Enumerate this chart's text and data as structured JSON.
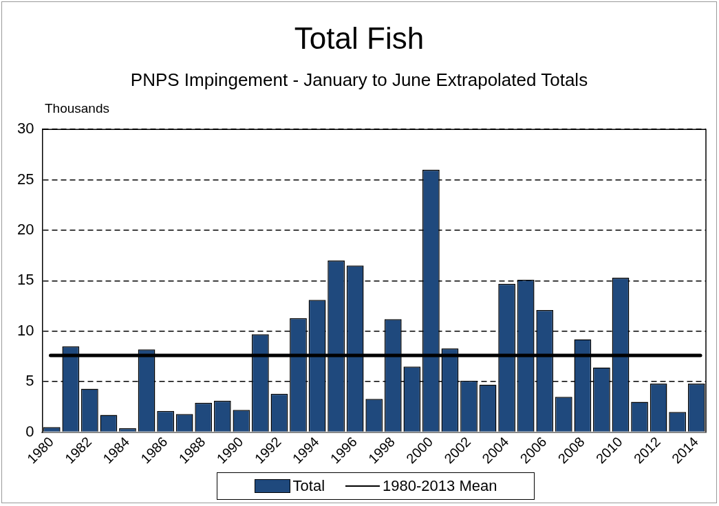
{
  "chart_data": {
    "type": "bar",
    "title": "Total Fish",
    "subtitle": "PNPS Impingement - January to June Extrapolated Totals",
    "ylabel": "Thousands",
    "categories": [
      "1980",
      null,
      "1982",
      null,
      "1984",
      null,
      "1986",
      null,
      "1988",
      null,
      "1990",
      null,
      "1992",
      null,
      "1994",
      null,
      "1996",
      null,
      "1998",
      null,
      "2000",
      null,
      "2002",
      null,
      "2004",
      null,
      "2006",
      null,
      "2008",
      null,
      "2010",
      null,
      "2012",
      null,
      "2014"
    ],
    "series": [
      {
        "name": "Total",
        "color": "#1f497d",
        "values": [
          0.5,
          8.5,
          4.3,
          1.7,
          0.4,
          8.2,
          2.1,
          1.8,
          2.9,
          3.1,
          2.2,
          9.7,
          3.8,
          11.3,
          13.1,
          17.0,
          16.5,
          3.3,
          11.2,
          6.5,
          26.0,
          8.3,
          5.1,
          4.7,
          14.7,
          15.1,
          12.1,
          3.5,
          9.2,
          6.4,
          15.3,
          3.0,
          4.8,
          2.0,
          4.8
        ]
      }
    ],
    "ref_lines": [
      {
        "axis": "y",
        "value": 7.6,
        "label": "1980-2013 Mean",
        "color": "#000000",
        "line_style": "solid"
      }
    ],
    "ylim": [
      0,
      30
    ],
    "yticks": [
      0,
      5,
      10,
      15,
      20,
      25,
      30
    ],
    "grid": "y",
    "legend": "bottom"
  }
}
